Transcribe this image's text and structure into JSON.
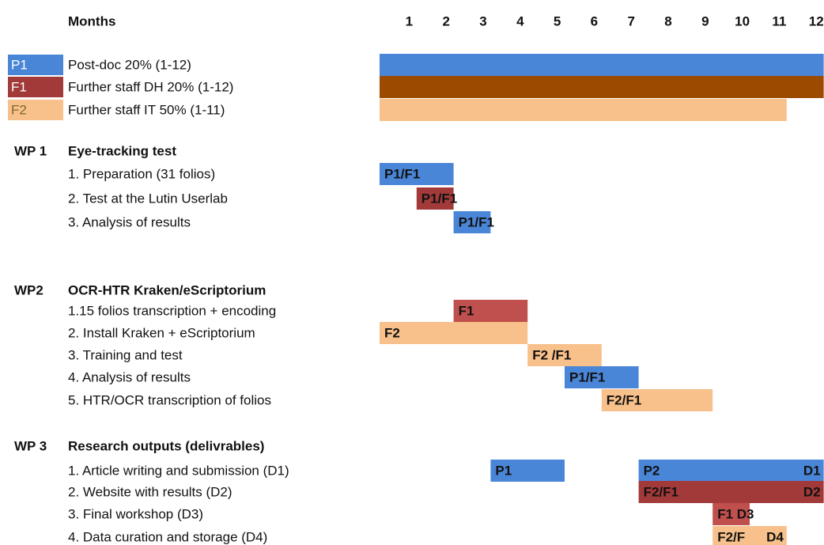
{
  "header": {
    "title": "Months",
    "months": [
      1,
      2,
      3,
      4,
      5,
      6,
      7,
      8,
      9,
      10,
      11,
      12
    ]
  },
  "staff": [
    {
      "code": "P1",
      "name": "Post-doc 20% (1-12)",
      "start": 1,
      "end": 12,
      "code_bg": "#4a86d8",
      "code_fg": "#ffffff",
      "color": "#4a86d8"
    },
    {
      "code": "F1",
      "name": "Further staff DH 20% (1-12)",
      "start": 1,
      "end": 12,
      "code_bg": "#a33a3a",
      "code_fg": "#ffffff",
      "color": "#9c4a00"
    },
    {
      "code": "F2",
      "name": "Further staff IT 50% (1-11)",
      "start": 1,
      "end": 11,
      "code_bg": "#f8c08a",
      "code_fg": "#7a6a2a",
      "color": "#f8c08a"
    }
  ],
  "work_packages": [
    {
      "id": "WP 1",
      "title": "Eye-tracking test",
      "tasks": [
        {
          "name": "1. Preparation (31 folios)",
          "bars": [
            {
              "start": 1,
              "end": 2,
              "label": "P1/F1",
              "color": "#4a86d8"
            }
          ]
        },
        {
          "name": "2. Test at the Lutin Userlab",
          "bars": [
            {
              "start": 2,
              "end": 2,
              "label": "P1/F1",
              "color": "#a33a3a"
            }
          ]
        },
        {
          "name": "3. Analysis of results",
          "bars": [
            {
              "start": 3,
              "end": 3,
              "label": "P1/F1",
              "color": "#4a86d8"
            }
          ]
        }
      ]
    },
    {
      "id": "WP2",
      "title": "OCR-HTR Kraken/eScriptorium",
      "tasks": [
        {
          "name": "1.15 folios transcription + encoding",
          "bars": [
            {
              "start": 3,
              "end": 4,
              "label": "F1",
              "color": "#c0504d"
            }
          ]
        },
        {
          "name": "2. Install Kraken + eScriptorium",
          "bars": [
            {
              "start": 1,
              "end": 4,
              "label": "F2",
              "color": "#f8c08a"
            }
          ]
        },
        {
          "name": "3. Training and test",
          "bars": [
            {
              "start": 5,
              "end": 6,
              "label": "F2 /F1",
              "color": "#f8c08a"
            }
          ]
        },
        {
          "name": "4. Analysis of results",
          "bars": [
            {
              "start": 6,
              "end": 7,
              "label": "P1/F1",
              "color": "#4a86d8"
            }
          ]
        },
        {
          "name": "5. HTR/OCR transcription of folios",
          "bars": [
            {
              "start": 7,
              "end": 9,
              "label": "F2/F1",
              "color": "#f8c08a"
            }
          ]
        }
      ]
    },
    {
      "id": "WP 3",
      "title": "Research outputs (delivrables)",
      "tasks": [
        {
          "name": "1. Article writing and submission (D1)",
          "bars": [
            {
              "start": 4,
              "end": 5,
              "label": "P1",
              "color": "#4a86d8"
            },
            {
              "start": 8,
              "end": 12,
              "label": "P2",
              "end_label": "D1",
              "color": "#4a86d8"
            }
          ]
        },
        {
          "name": "2. Website with results (D2)",
          "bars": [
            {
              "start": 8,
              "end": 12,
              "label": "F2/F1",
              "end_label": "D2",
              "color": "#a33a3a"
            }
          ]
        },
        {
          "name": "3. Final workshop (D3)",
          "bars": [
            {
              "start": 10,
              "end": 10,
              "label": "F1 D3",
              "color": "#c0504d"
            }
          ]
        },
        {
          "name": "4. Data curation and storage (D4)",
          "bars": [
            {
              "start": 10,
              "end": 11,
              "label": "F2/F",
              "end_label": "D4",
              "color": "#f8c08a"
            }
          ]
        }
      ]
    }
  ]
}
